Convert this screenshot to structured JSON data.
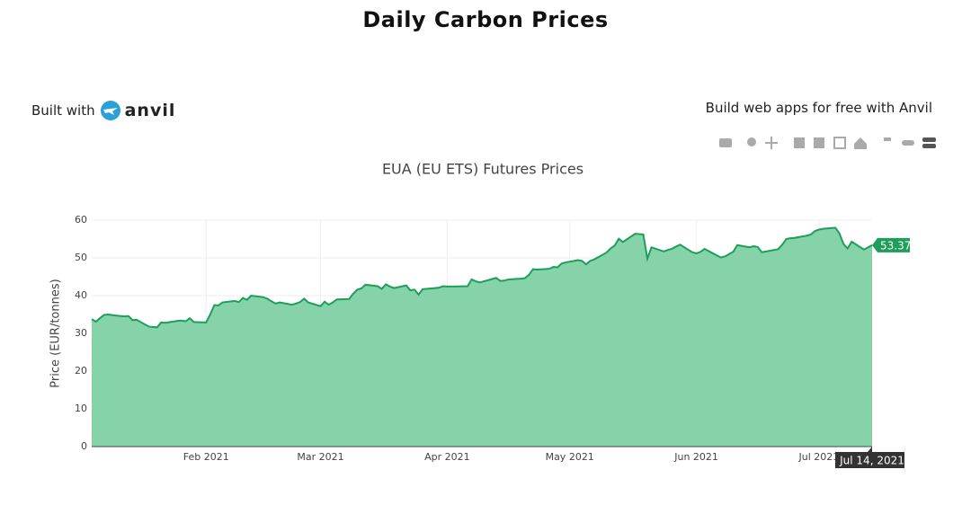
{
  "header": {
    "title": "Daily Carbon Prices",
    "built_with": "Built with",
    "logo": "anvil",
    "promo": "Build web apps for free with Anvil"
  },
  "chart_data": {
    "type": "area",
    "title": "EUA (EU ETS) Futures Prices",
    "y_label": "Price (EUR/tonnes)",
    "color": "#1e9e5a",
    "fill_color": "#86d3aa",
    "grid": true,
    "x": [
      "2021-01-04",
      "2021-01-05",
      "2021-01-06",
      "2021-01-07",
      "2021-01-08",
      "2021-01-11",
      "2021-01-12",
      "2021-01-13",
      "2021-01-14",
      "2021-01-15",
      "2021-01-18",
      "2021-01-19",
      "2021-01-20",
      "2021-01-21",
      "2021-01-22",
      "2021-01-25",
      "2021-01-26",
      "2021-01-27",
      "2021-01-28",
      "2021-01-29",
      "2021-02-01",
      "2021-02-02",
      "2021-02-03",
      "2021-02-04",
      "2021-02-05",
      "2021-02-08",
      "2021-02-09",
      "2021-02-10",
      "2021-02-11",
      "2021-02-12",
      "2021-02-15",
      "2021-02-16",
      "2021-02-17",
      "2021-02-18",
      "2021-02-19",
      "2021-02-22",
      "2021-02-23",
      "2021-02-24",
      "2021-02-25",
      "2021-02-26",
      "2021-03-01",
      "2021-03-02",
      "2021-03-03",
      "2021-03-04",
      "2021-03-05",
      "2021-03-08",
      "2021-03-09",
      "2021-03-10",
      "2021-03-11",
      "2021-03-12",
      "2021-03-15",
      "2021-03-16",
      "2021-03-17",
      "2021-03-18",
      "2021-03-19",
      "2021-03-22",
      "2021-03-23",
      "2021-03-24",
      "2021-03-25",
      "2021-03-26",
      "2021-03-29",
      "2021-03-30",
      "2021-03-31",
      "2021-04-01",
      "2021-04-06",
      "2021-04-07",
      "2021-04-08",
      "2021-04-09",
      "2021-04-12",
      "2021-04-13",
      "2021-04-14",
      "2021-04-15",
      "2021-04-16",
      "2021-04-19",
      "2021-04-20",
      "2021-04-21",
      "2021-04-22",
      "2021-04-23",
      "2021-04-26",
      "2021-04-27",
      "2021-04-28",
      "2021-04-29",
      "2021-04-30",
      "2021-05-03",
      "2021-05-04",
      "2021-05-05",
      "2021-05-06",
      "2021-05-07",
      "2021-05-10",
      "2021-05-11",
      "2021-05-12",
      "2021-05-13",
      "2021-05-14",
      "2021-05-17",
      "2021-05-18",
      "2021-05-19",
      "2021-05-20",
      "2021-05-21",
      "2021-05-24",
      "2021-05-25",
      "2021-05-26",
      "2021-05-27",
      "2021-05-28",
      "2021-05-31",
      "2021-06-01",
      "2021-06-02",
      "2021-06-03",
      "2021-06-04",
      "2021-06-07",
      "2021-06-08",
      "2021-06-09",
      "2021-06-10",
      "2021-06-11",
      "2021-06-14",
      "2021-06-15",
      "2021-06-16",
      "2021-06-17",
      "2021-06-18",
      "2021-06-21",
      "2021-06-22",
      "2021-06-23",
      "2021-06-24",
      "2021-06-25",
      "2021-06-28",
      "2021-06-29",
      "2021-06-30",
      "2021-07-01",
      "2021-07-02",
      "2021-07-05",
      "2021-07-06",
      "2021-07-07",
      "2021-07-08",
      "2021-07-09",
      "2021-07-12",
      "2021-07-13",
      "2021-07-14"
    ],
    "values": [
      33.8,
      33.1,
      34.0,
      34.9,
      35.0,
      34.6,
      34.5,
      34.6,
      33.5,
      33.6,
      31.8,
      31.7,
      31.6,
      32.9,
      32.8,
      33.3,
      33.4,
      33.2,
      34.0,
      33.0,
      32.9,
      35.0,
      37.5,
      37.4,
      38.2,
      38.6,
      38.3,
      39.4,
      38.9,
      40.0,
      39.6,
      39.2,
      38.5,
      37.9,
      38.2,
      37.6,
      37.9,
      38.3,
      39.2,
      38.2,
      37.2,
      38.4,
      37.6,
      38.2,
      39.0,
      39.1,
      40.5,
      41.6,
      41.9,
      42.9,
      42.5,
      41.8,
      43.0,
      42.4,
      42.0,
      42.7,
      41.4,
      41.6,
      40.3,
      41.7,
      42.0,
      42.1,
      42.5,
      42.4,
      42.5,
      44.3,
      43.8,
      43.5,
      44.4,
      44.7,
      43.9,
      44.0,
      44.3,
      44.5,
      44.6,
      45.5,
      47.0,
      46.9,
      47.1,
      47.6,
      47.5,
      48.5,
      48.8,
      49.4,
      49.2,
      48.3,
      49.2,
      49.6,
      51.4,
      52.5,
      53.3,
      55.1,
      54.2,
      56.4,
      56.3,
      56.2,
      49.8,
      52.8,
      51.7,
      52.1,
      52.4,
      53.0,
      53.5,
      51.5,
      51.2,
      51.6,
      52.4,
      51.8,
      50.1,
      50.4,
      51.0,
      51.6,
      53.4,
      52.8,
      53.1,
      52.9,
      51.5,
      51.7,
      52.3,
      53.5,
      55.0,
      55.2,
      55.3,
      55.9,
      56.2,
      57.1,
      57.5,
      57.7,
      58.0,
      56.5,
      53.7,
      52.5,
      54.3,
      52.2,
      52.8,
      53.37
    ],
    "xlim": [
      "2021-01-04",
      "2021-07-14"
    ],
    "xticks": [
      {
        "value": "2021-02-01",
        "label": "Feb 2021"
      },
      {
        "value": "2021-03-01",
        "label": "Mar 2021"
      },
      {
        "value": "2021-04-01",
        "label": "Apr 2021"
      },
      {
        "value": "2021-05-01",
        "label": "May 2021"
      },
      {
        "value": "2021-06-01",
        "label": "Jun 2021"
      },
      {
        "value": "2021-07-01",
        "label": "Jul 2021"
      }
    ],
    "ylim": [
      0,
      60
    ],
    "yticks": [
      0,
      10,
      20,
      30,
      40,
      50,
      60
    ],
    "hover": {
      "x_label": "Jul 14, 2021",
      "y_label": "53.37"
    }
  }
}
